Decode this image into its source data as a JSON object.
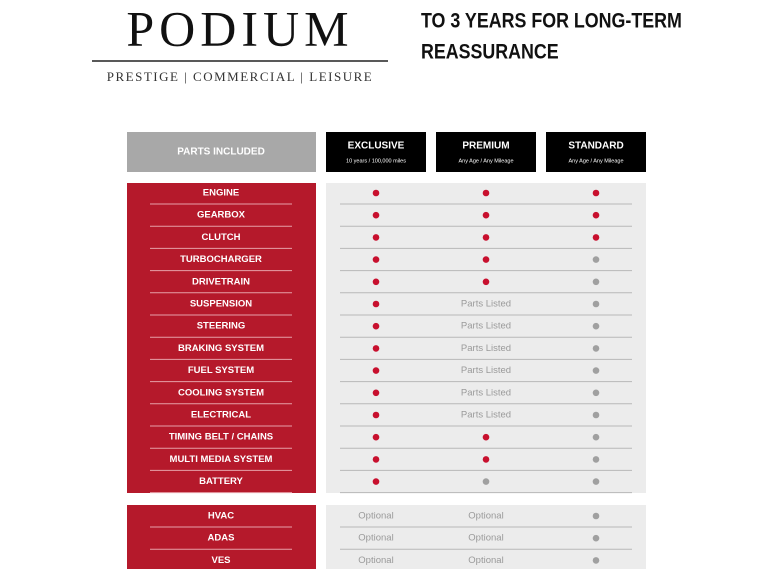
{
  "header": {
    "logo": "PODIUM",
    "tagline": "PRESTIGE | COMMERCIAL | LEISURE",
    "headline": [
      "TO 3 YEARS FOR LONG-TERM",
      "REASSURANCE"
    ]
  },
  "table": {
    "parts_header": "PARTS INCLUDED",
    "columns": [
      {
        "name": "EXCLUSIVE",
        "detail": "10 years / 100,000 miles"
      },
      {
        "name": "PREMIUM",
        "detail": "Any Age / Any Mileage"
      },
      {
        "name": "STANDARD",
        "detail": "Any Age / Any Mileage"
      }
    ],
    "rows": [
      {
        "part": "ENGINE"
      },
      {
        "part": "GEARBOX"
      },
      {
        "part": "CLUTCH"
      },
      {
        "part": "TURBOCHARGER"
      },
      {
        "part": "DRIVETRAIN"
      },
      {
        "part": "SUSPENSION",
        "premium": "Parts Listed"
      },
      {
        "part": "STEERING",
        "premium": "Parts Listed"
      },
      {
        "part": "BRAKING SYSTEM",
        "premium": "Parts Listed"
      },
      {
        "part": "FUEL SYSTEM",
        "premium": "Parts Listed"
      },
      {
        "part": "COOLING SYSTEM",
        "premium": "Parts Listed"
      },
      {
        "part": "ELECTRICAL",
        "premium": "Parts Listed"
      },
      {
        "part": "TIMING BELT / CHAINS"
      },
      {
        "part": "MULTI MEDIA SYSTEM"
      },
      {
        "part": "BATTERY"
      }
    ],
    "optional_rows": [
      {
        "part": "HVAC",
        "exclusive": "Optional",
        "premium": "Optional"
      },
      {
        "part": "ADAS",
        "exclusive": "Optional",
        "premium": "Optional"
      },
      {
        "part": "VES",
        "exclusive": "Optional",
        "premium": "Optional"
      }
    ]
  }
}
